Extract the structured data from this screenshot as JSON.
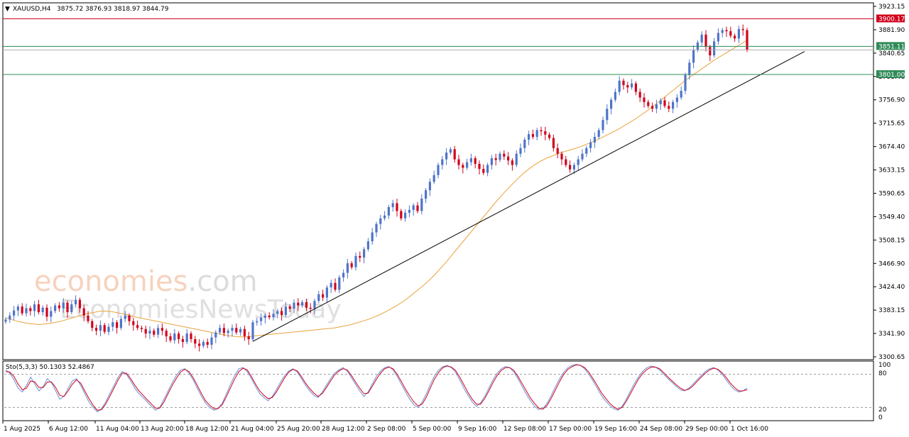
{
  "header": {
    "symbol": "XAUUSD,H4",
    "ohlc": "3875.72 3876.93 3818.97 3844.79"
  },
  "watermark": {
    "brand_main": "economies",
    "brand_suffix": ".com",
    "brand_sub": "EconomiesNewsToday"
  },
  "colors": {
    "bull": "#4f74c9",
    "bear": "#d0021b",
    "ma": "#e8a33c",
    "trend": "#000000",
    "res_line": "#d0021b",
    "sup_line": "#2e8b57",
    "stoch_main": "#d0021b",
    "stoch_signal": "#6a8fd8"
  },
  "chart_data": [
    {
      "type": "line",
      "title": "XAUUSD,H4",
      "subtitle": "3875.72 3876.93 3818.97 3844.79",
      "y_tick_labels": [
        "3923.15",
        "3881.90",
        "3840.65",
        "3798.40",
        "3756.90",
        "3715.65",
        "3674.40",
        "3633.15",
        "3590.65",
        "3549.40",
        "3508.15",
        "3466.90",
        "3424.40",
        "3383.15",
        "3341.90",
        "3300.65"
      ],
      "x_tick_labels": [
        "1 Aug 2025",
        "6 Aug 12:00",
        "11 Aug 04:00",
        "13 Aug 20:00",
        "18 Aug 12:00",
        "21 Aug 04:00",
        "25 Aug 20:00",
        "28 Aug 12:00",
        "2 Sep 08:00",
        "5 Sep 00:00",
        "9 Sep 16:00",
        "12 Sep 08:00",
        "17 Sep 00:00",
        "19 Sep 16:00",
        "24 Sep 08:00",
        "29 Sep 00:00",
        "1 Oct 16:00"
      ],
      "ylim": [
        3296,
        3926
      ],
      "grid": false,
      "candles_close": [
        3365,
        3372,
        3381,
        3388,
        3376,
        3385,
        3380,
        3392,
        3378,
        3386,
        3370,
        3380,
        3390,
        3385,
        3395,
        3378,
        3392,
        3400,
        3385,
        3372,
        3362,
        3350,
        3345,
        3355,
        3343,
        3352,
        3360,
        3350,
        3366,
        3372,
        3362,
        3355,
        3350,
        3348,
        3340,
        3345,
        3338,
        3350,
        3345,
        3335,
        3328,
        3340,
        3330,
        3325,
        3340,
        3330,
        3322,
        3318,
        3325,
        3320,
        3333,
        3342,
        3350,
        3341,
        3345,
        3350,
        3342,
        3348,
        3335,
        3330,
        3360,
        3362,
        3368,
        3372,
        3369,
        3375,
        3380,
        3373,
        3388,
        3384,
        3395,
        3390,
        3396,
        3386,
        3384,
        3398,
        3410,
        3404,
        3422,
        3430,
        3418,
        3440,
        3448,
        3465,
        3458,
        3478,
        3475,
        3490,
        3504,
        3520,
        3535,
        3545,
        3550,
        3565,
        3572,
        3558,
        3545,
        3555,
        3560,
        3568,
        3558,
        3580,
        3595,
        3610,
        3622,
        3640,
        3650,
        3662,
        3668,
        3650,
        3640,
        3635,
        3645,
        3652,
        3642,
        3633,
        3626,
        3640,
        3652,
        3649,
        3660,
        3655,
        3648,
        3640,
        3660,
        3670,
        3685,
        3695,
        3690,
        3702,
        3700,
        3694,
        3688,
        3670,
        3660,
        3650,
        3640,
        3632,
        3640,
        3650,
        3660,
        3670,
        3680,
        3690,
        3702,
        3720,
        3740,
        3756,
        3770,
        3790,
        3782,
        3778,
        3785,
        3770,
        3760,
        3752,
        3745,
        3740,
        3748,
        3755,
        3745,
        3740,
        3752,
        3760,
        3772,
        3800,
        3822,
        3845,
        3858,
        3872,
        3850,
        3835,
        3860,
        3875,
        3880,
        3878,
        3870,
        3865,
        3882,
        3880,
        3845
      ],
      "ma_values": [
        3368,
        3365,
        3362,
        3360,
        3358,
        3357,
        3356,
        3357,
        3358,
        3360,
        3362,
        3365,
        3368,
        3371,
        3374,
        3376,
        3378,
        3380,
        3380,
        3379,
        3377,
        3375,
        3373,
        3370,
        3368,
        3366,
        3364,
        3362,
        3360,
        3358,
        3356,
        3354,
        3352,
        3350,
        3348,
        3346,
        3344,
        3342,
        3340,
        3338,
        3336,
        3335,
        3334,
        3334,
        3335,
        3336,
        3337,
        3338,
        3339,
        3340,
        3341,
        3342,
        3343,
        3344,
        3345,
        3346,
        3347,
        3348,
        3349,
        3350,
        3352,
        3354,
        3356,
        3359,
        3362,
        3365,
        3369,
        3373,
        3378,
        3383,
        3389,
        3395,
        3402,
        3410,
        3418,
        3426,
        3435,
        3445,
        3456,
        3467,
        3479,
        3491,
        3503,
        3515,
        3527,
        3539,
        3551,
        3563,
        3575,
        3586,
        3597,
        3607,
        3617,
        3626,
        3634,
        3641,
        3647,
        3652,
        3656,
        3660,
        3663,
        3666,
        3669,
        3672,
        3676,
        3680,
        3684,
        3689,
        3694,
        3699,
        3704,
        3710,
        3716,
        3722,
        3729,
        3736,
        3743,
        3751,
        3759,
        3767,
        3775,
        3783,
        3791,
        3798,
        3805,
        3812,
        3819,
        3826,
        3832,
        3838,
        3844,
        3850,
        3856,
        3862
      ],
      "trendline": {
        "from": [
          0.0,
          3330
        ],
        "to": [
          1.0,
          3842
        ]
      },
      "resistance": 3900.17,
      "support_1": 3851.11,
      "support_2": 3801.0,
      "series": [
        {
          "name": "",
          "values": []
        }
      ]
    },
    {
      "type": "line",
      "title": "Sto(5,3,3) 50.1303 52.4867",
      "y_tick_labels": [
        "100",
        "80",
        "20",
        "0"
      ],
      "ylim": [
        0,
        100
      ],
      "levels": [
        80,
        20
      ],
      "series": [
        {
          "name": "",
          "values": [
            88,
            82,
            70,
            55,
            48,
            60,
            75,
            62,
            50,
            58,
            72,
            65,
            50,
            35,
            40,
            55,
            68,
            72,
            60,
            45,
            30,
            20,
            12,
            18,
            30,
            45,
            60,
            75,
            85,
            80,
            68,
            55,
            45,
            38,
            30,
            22,
            15,
            20,
            35,
            50,
            65,
            78,
            88,
            90,
            82,
            70,
            55,
            40,
            28,
            20,
            15,
            18,
            28,
            45,
            62,
            78,
            90,
            92,
            85,
            72,
            58,
            45,
            38,
            32,
            40,
            52,
            66,
            78,
            86,
            90,
            84,
            72,
            60,
            50,
            42,
            38,
            48,
            60,
            72,
            82,
            88,
            92,
            86,
            74,
            62,
            50,
            40,
            48,
            62,
            76,
            86,
            92,
            94,
            88,
            76,
            62,
            48,
            35,
            25,
            20,
            30,
            45,
            62,
            78,
            88,
            94,
            96,
            92,
            84,
            70,
            55,
            42,
            30,
            22,
            28,
            40,
            55,
            70,
            82,
            90,
            94,
            92,
            84,
            72,
            58,
            44,
            32,
            22,
            16,
            18,
            28,
            42,
            58,
            72,
            84,
            92,
            96,
            98,
            96,
            90,
            80,
            68,
            55,
            42,
            32,
            24,
            18,
            15,
            22,
            35,
            50,
            64,
            76,
            86,
            92,
            95,
            93,
            88,
            80,
            72,
            65,
            58,
            52,
            50,
            55,
            62,
            70,
            78,
            85,
            90,
            92,
            88,
            80,
            70,
            60,
            52,
            48,
            50,
            55
          ]
        },
        {
          "name": "",
          "values": [
            85,
            84,
            76,
            62,
            52,
            55,
            68,
            66,
            56,
            56,
            66,
            66,
            56,
            42,
            40,
            50,
            62,
            70,
            64,
            50,
            36,
            24,
            15,
            16,
            26,
            40,
            55,
            70,
            82,
            82,
            72,
            60,
            50,
            42,
            34,
            26,
            19,
            19,
            30,
            45,
            60,
            73,
            84,
            89,
            85,
            74,
            60,
            45,
            32,
            24,
            18,
            18,
            25,
            40,
            56,
            72,
            85,
            91,
            88,
            76,
            62,
            50,
            42,
            36,
            38,
            48,
            61,
            74,
            84,
            89,
            86,
            76,
            64,
            54,
            46,
            40,
            45,
            56,
            68,
            79,
            86,
            90,
            88,
            78,
            66,
            55,
            45,
            46,
            58,
            71,
            82,
            90,
            93,
            90,
            80,
            67,
            53,
            41,
            30,
            23,
            26,
            39,
            56,
            72,
            84,
            92,
            95,
            93,
            87,
            75,
            61,
            47,
            35,
            26,
            26,
            36,
            50,
            65,
            78,
            87,
            92,
            92,
            87,
            76,
            63,
            50,
            37,
            27,
            19,
            17,
            24,
            37,
            52,
            67,
            80,
            89,
            94,
            97,
            96,
            92,
            84,
            72,
            60,
            47,
            37,
            28,
            21,
            17,
            20,
            31,
            45,
            59,
            72,
            82,
            89,
            93,
            93,
            90,
            83,
            75,
            68,
            61,
            55,
            51,
            53,
            59,
            67,
            75,
            82,
            88,
            91,
            89,
            83,
            74,
            64,
            56,
            50,
            50,
            52
          ]
        }
      ]
    }
  ]
}
